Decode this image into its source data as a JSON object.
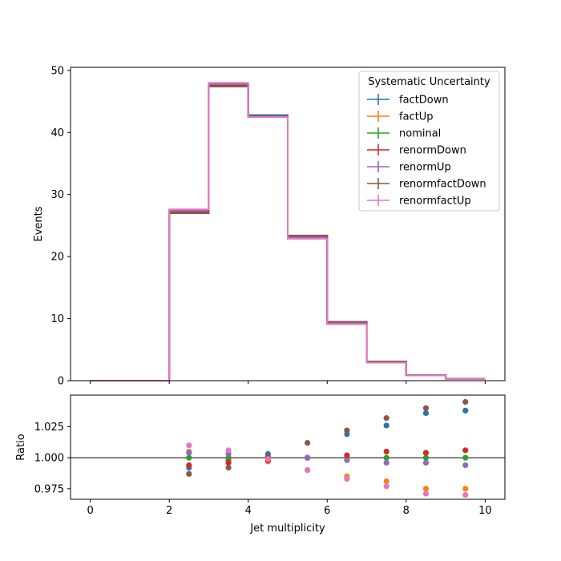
{
  "chart_data": [
    {
      "type": "line",
      "subtype": "step-histogram",
      "title": "",
      "xlabel": "",
      "ylabel": "Events",
      "xlim": [
        -0.5,
        10.5
      ],
      "ylim": [
        0,
        50.5
      ],
      "xticks": [
        0,
        2,
        4,
        6,
        8,
        10
      ],
      "yticks": [
        0,
        10,
        20,
        30,
        40,
        50
      ],
      "grid": false,
      "legend": {
        "title": "Systematic Uncertainty",
        "placement": "top-right"
      },
      "bin_edges": [
        0,
        1,
        2,
        3,
        4,
        5,
        6,
        7,
        8,
        9,
        10
      ],
      "series": [
        {
          "name": "factDown",
          "color": "#1f77b4",
          "values": [
            0,
            0,
            27.3,
            47.7,
            42.8,
            23.3,
            9.4,
            3.1,
            0.9,
            0.3
          ]
        },
        {
          "name": "factUp",
          "color": "#ff7f0e",
          "values": [
            0,
            0,
            27.4,
            47.6,
            42.5,
            22.9,
            9.2,
            2.9,
            0.85,
            0.28
          ]
        },
        {
          "name": "nominal",
          "color": "#2ca02c",
          "values": [
            0,
            0,
            27.3,
            47.7,
            42.6,
            23.2,
            9.3,
            3.0,
            0.87,
            0.29
          ]
        },
        {
          "name": "renormDown",
          "color": "#d62728",
          "values": [
            0,
            0,
            27.1,
            47.5,
            42.6,
            23.3,
            9.4,
            3.0,
            0.88,
            0.29
          ]
        },
        {
          "name": "renormUp",
          "color": "#9467bd",
          "values": [
            0,
            0,
            27.4,
            47.8,
            42.6,
            23.1,
            9.3,
            3.0,
            0.86,
            0.28
          ]
        },
        {
          "name": "renormfactDown",
          "color": "#8c564b",
          "values": [
            0,
            0,
            27.0,
            47.4,
            42.6,
            23.4,
            9.5,
            3.1,
            0.9,
            0.3
          ]
        },
        {
          "name": "renormfactUp",
          "color": "#e377c2",
          "values": [
            0,
            0,
            27.6,
            48.0,
            42.5,
            22.9,
            9.1,
            2.9,
            0.84,
            0.28
          ]
        }
      ]
    },
    {
      "type": "scatter",
      "title": "",
      "xlabel": "Jet multiplicity",
      "ylabel": "Ratio",
      "xlim": [
        -0.5,
        10.5
      ],
      "ylim": [
        0.9665,
        1.0505
      ],
      "xticks": [
        0,
        2,
        4,
        6,
        8,
        10
      ],
      "yticks": [
        0.975,
        1.0,
        1.025
      ],
      "ytick_labels": [
        "0.975",
        "1.000",
        "1.025"
      ],
      "reference_line": 1.0,
      "grid": false,
      "x": [
        2.5,
        3.5,
        4.5,
        5.5,
        6.5,
        7.5,
        8.5,
        9.5
      ],
      "series": [
        {
          "name": "factDown",
          "color": "#1f77b4",
          "values": [
            0.992,
            0.998,
            1.003,
            1.0,
            1.019,
            1.026,
            1.036,
            1.038
          ]
        },
        {
          "name": "factUp",
          "color": "#ff7f0e",
          "values": [
            1.005,
            0.999,
            0.997,
            0.99,
            0.985,
            0.981,
            0.975,
            0.975
          ]
        },
        {
          "name": "nominal",
          "color": "#2ca02c",
          "values": [
            1.0,
            1.0,
            1.0,
            1.0,
            1.0,
            1.0,
            1.0,
            1.0
          ]
        },
        {
          "name": "renormDown",
          "color": "#d62728",
          "values": [
            0.994,
            0.996,
            0.998,
            1.0,
            1.002,
            1.005,
            1.004,
            1.006
          ]
        },
        {
          "name": "renormUp",
          "color": "#9467bd",
          "values": [
            1.004,
            1.003,
            1.0,
            1.0,
            0.998,
            0.996,
            0.996,
            0.994
          ]
        },
        {
          "name": "renormfactDown",
          "color": "#8c564b",
          "values": [
            0.987,
            0.992,
            1.001,
            1.012,
            1.022,
            1.032,
            1.04,
            1.045
          ]
        },
        {
          "name": "renormfactUp",
          "color": "#e377c2",
          "values": [
            1.01,
            1.006,
            0.999,
            0.99,
            0.983,
            0.977,
            0.971,
            0.97
          ]
        }
      ]
    }
  ]
}
